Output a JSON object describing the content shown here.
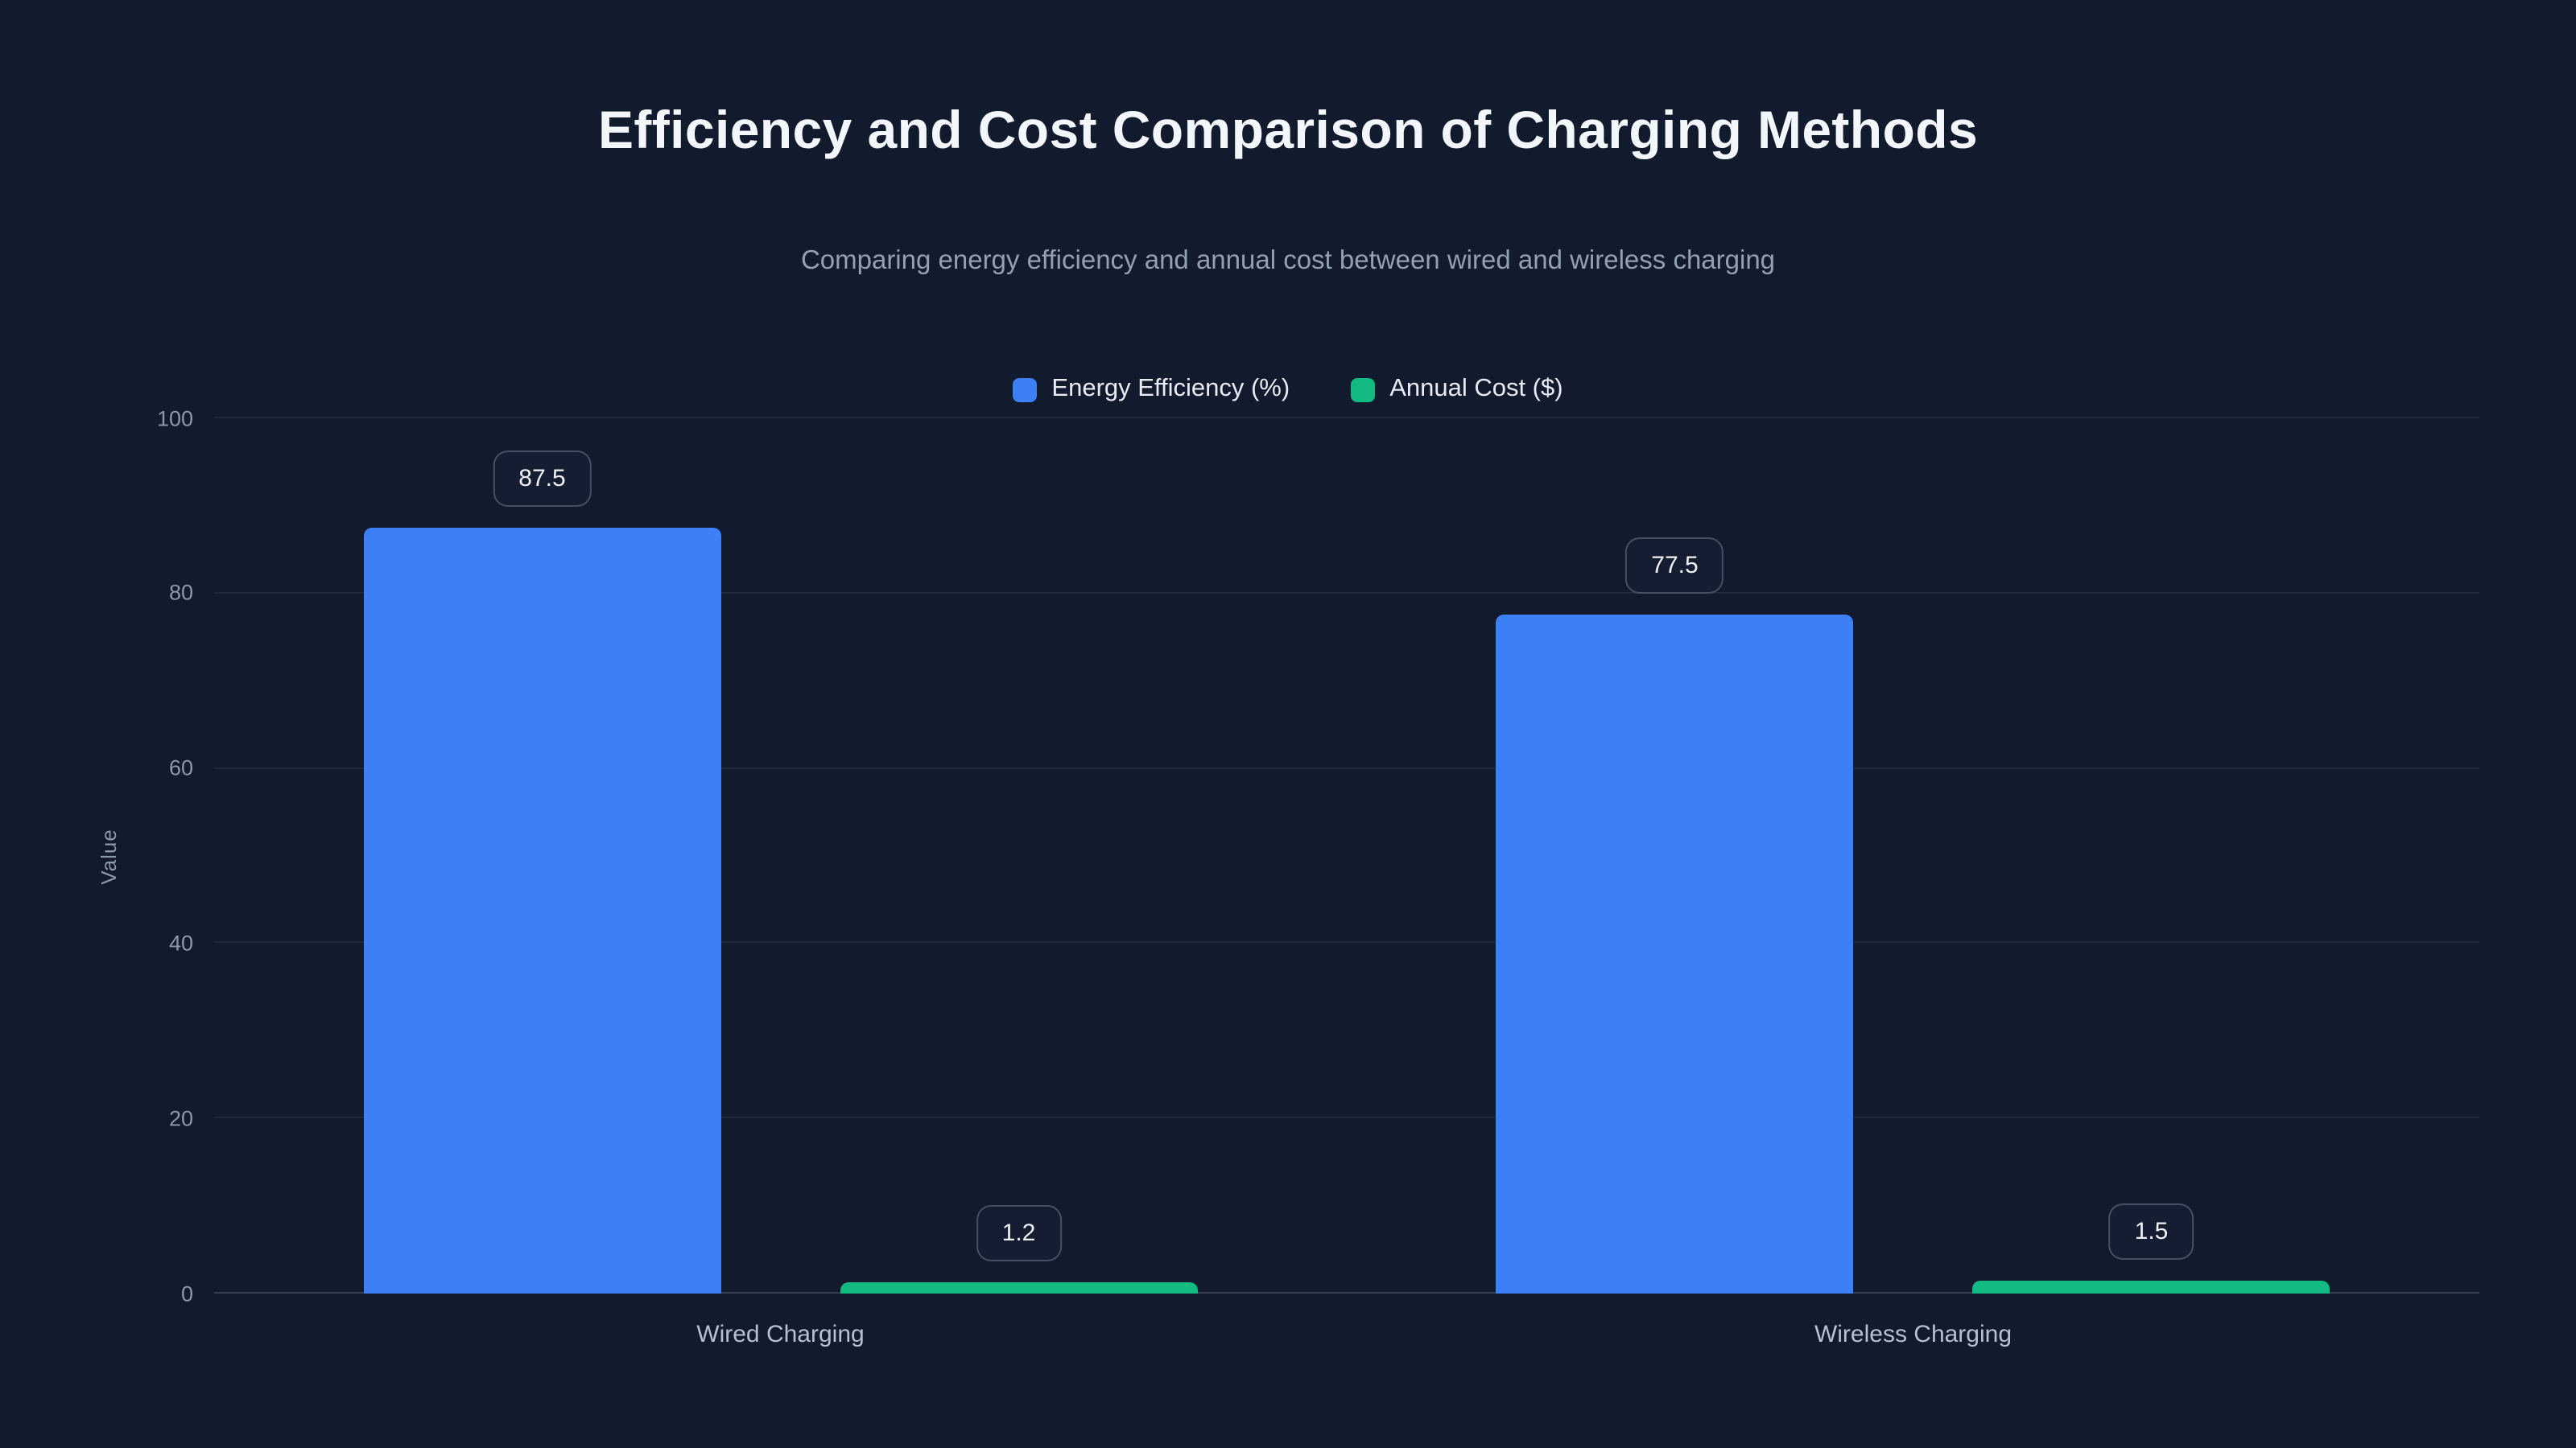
{
  "chart_data": {
    "type": "bar",
    "title": "Efficiency and Cost Comparison of Charging Methods",
    "subtitle": "Comparing energy efficiency and annual cost between wired and wireless charging",
    "categories": [
      "Wired Charging",
      "Wireless Charging"
    ],
    "series": [
      {
        "name": "Energy Efficiency (%)",
        "color": "#3d80f6",
        "values": [
          87.5,
          77.5
        ]
      },
      {
        "name": "Annual Cost ($)",
        "color": "#12b981",
        "values": [
          1.2,
          1.5
        ]
      }
    ],
    "ylabel": "Value",
    "ylim": [
      0,
      100
    ],
    "yticks": [
      0,
      20,
      40,
      60,
      80,
      100
    ],
    "grid": true,
    "legend_position": "top",
    "background_color": "#121a2d",
    "label_box_border_color": "rgba(148,163,184,0.38)",
    "text_colors": {
      "title": "#f3f6fb",
      "subtitle": "#93a0b4",
      "axis": "#8b98ad",
      "category": "#b6c0d0"
    }
  }
}
